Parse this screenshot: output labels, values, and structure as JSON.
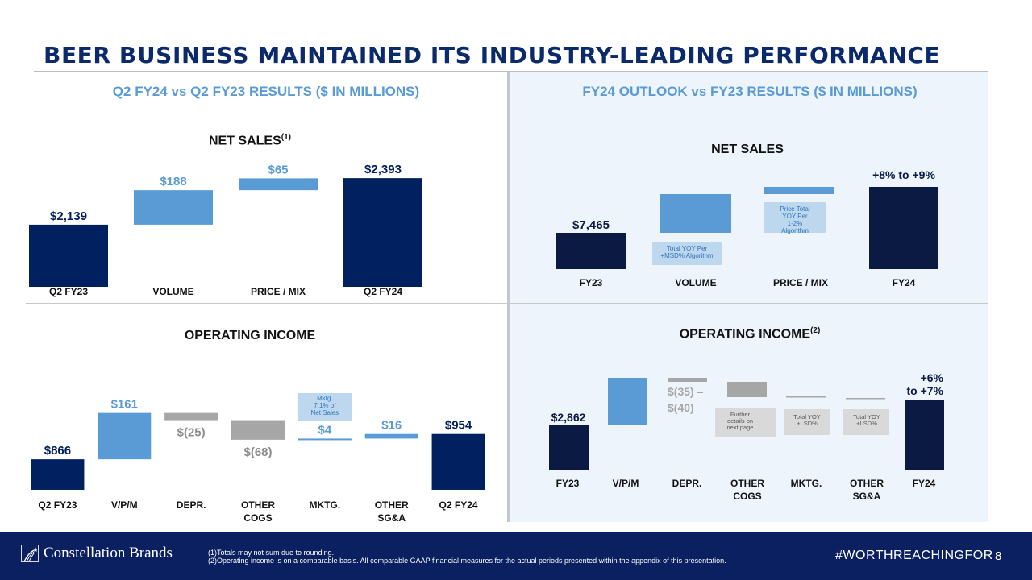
{
  "title": "BEER BUSINESS MAINTAINED ITS INDUSTRY-LEADING PERFORMANCE",
  "left_section": {
    "header": "Q2 FY24 vs Q2 FY23 RESULTS ($ IN MILLIONS)"
  },
  "right_section": {
    "header": "FY24 OUTLOOK vs FY23 RESULTS ($ IN MILLIONS)"
  },
  "colors": {
    "navy": "#002060",
    "dark_navy": "#0a1a42",
    "light_blue": "#5b9bd5",
    "pale_blue_box": "#bdd7ee",
    "gray": "#a6a6a6",
    "light_gray_box": "#d9d9d9",
    "header_blue": "#5b9bd5"
  },
  "chart_data": [
    {
      "id": "q2-net-sales",
      "type": "bar",
      "subtype": "waterfall",
      "title": "NET SALES",
      "title_footnote": "(1)",
      "categories": [
        "Q2 FY23",
        "VOLUME",
        "PRICE / MIX",
        "Q2 FY24"
      ],
      "values": [
        2139,
        188,
        65,
        2393
      ],
      "kinds": [
        "total",
        "increase",
        "increase",
        "total"
      ],
      "labels": [
        "$2,139",
        "$188",
        "$65",
        "$2,393"
      ],
      "ylim": [
        1800,
        2420
      ],
      "grid": false,
      "legend": "none"
    },
    {
      "id": "fy24-net-sales",
      "type": "bar",
      "subtype": "waterfall",
      "title": "NET SALES",
      "categories": [
        "FY23",
        "VOLUME",
        "PRICE / MIX",
        "FY24"
      ],
      "values": [
        7465,
        null,
        null,
        null
      ],
      "kinds": [
        "total",
        "increase",
        "increase",
        "total"
      ],
      "labels": [
        "$7,465",
        "",
        "",
        "+8% to +9%"
      ],
      "annotations": [
        {
          "category": "VOLUME",
          "text": "Total YOY Per +MSD% Algorithm"
        },
        {
          "category": "PRICE / MIX",
          "text": "Price Total YOY Per 1-2% Algorithm"
        }
      ],
      "grid": false,
      "legend": "none"
    },
    {
      "id": "q2-operating-income",
      "type": "bar",
      "subtype": "waterfall",
      "title": "OPERATING INCOME",
      "categories": [
        "Q2 FY23",
        "V/P/M",
        "DEPR.",
        "OTHER COGS",
        "MKTG.",
        "OTHER SG&A",
        "Q2 FY24"
      ],
      "values": [
        866,
        161,
        -25,
        -68,
        4,
        16,
        954
      ],
      "kinds": [
        "total",
        "increase",
        "decrease",
        "decrease",
        "increase",
        "increase",
        "total"
      ],
      "labels": [
        "$866",
        "$161",
        "$(25)",
        "$(68)",
        "$4",
        "$16",
        "$954"
      ],
      "annotations": [
        {
          "category": "MKTG.",
          "text": "Mktg. 7.1% of Net Sales"
        }
      ],
      "ylim": [
        760,
        1040
      ],
      "grid": false,
      "legend": "none"
    },
    {
      "id": "fy24-operating-income",
      "type": "bar",
      "subtype": "waterfall",
      "title": "OPERATING INCOME",
      "title_footnote": "(2)",
      "categories": [
        "FY23",
        "V/P/M",
        "DEPR.",
        "OTHER COGS",
        "MKTG.",
        "OTHER SG&A",
        "FY24"
      ],
      "values": [
        2862,
        null,
        null,
        null,
        null,
        null,
        null
      ],
      "value_ranges": {
        "DEPR.": [
          -35,
          -40
        ]
      },
      "kinds": [
        "total",
        "increase",
        "decrease",
        "decrease",
        "decrease",
        "decrease",
        "total"
      ],
      "labels": [
        "$2,862",
        "",
        "$(35) – $(40)",
        "",
        "",
        "",
        "+6% to +7%"
      ],
      "annotations": [
        {
          "category": "OTHER COGS",
          "text": "Further details on next page"
        },
        {
          "category": "MKTG.",
          "text": "Total YOY +LSD%"
        },
        {
          "category": "OTHER SG&A",
          "text": "Total YOY +LSD%"
        }
      ],
      "grid": false,
      "legend": "none"
    }
  ],
  "footer": {
    "brand": "Constellation Brands",
    "footnotes": [
      "(1)Totals may not sum due to rounding.",
      "(2)Operating income is on a comparable basis. All comparable GAAP financial measures for the actual periods presented within the appendix of this presentation."
    ],
    "hashtag": "#WORTHREACHINGFOR",
    "page_number": "8"
  }
}
